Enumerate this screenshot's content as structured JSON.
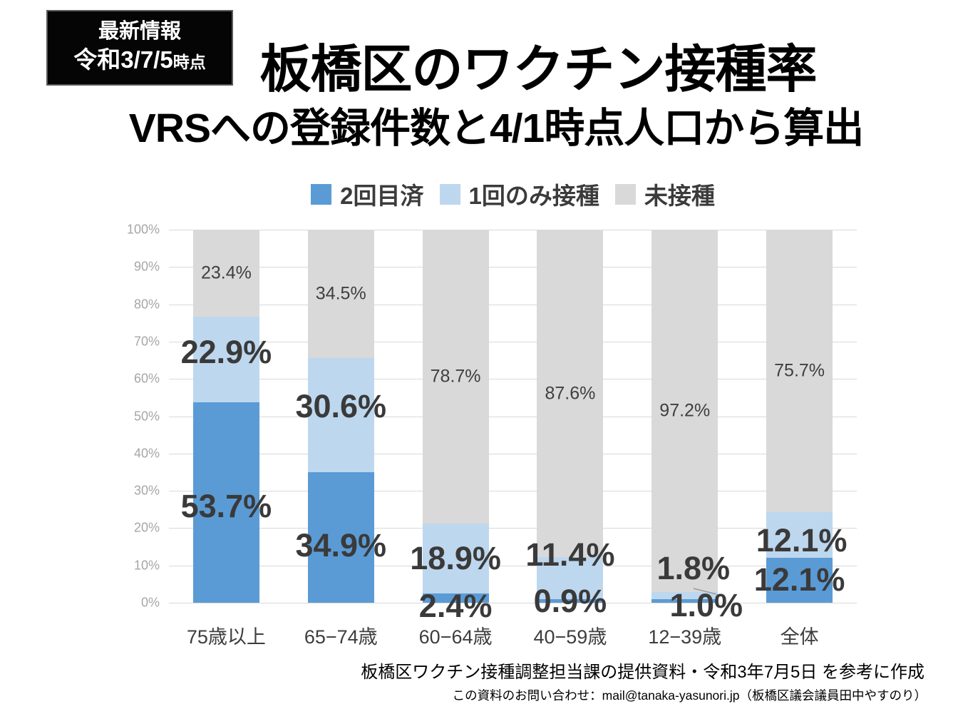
{
  "badge": {
    "line1": "最新情報",
    "line2": "令和3/7/5",
    "line2_suffix": "時点"
  },
  "title": "板橋区のワクチン接種率",
  "subtitle": "VRSへの登録件数と4/1時点人口から算出",
  "chart_data": {
    "type": "bar",
    "stacked": true,
    "title": "板橋区のワクチン接種率",
    "categories": [
      "75歳以上",
      "65−74歳",
      "60−64歳",
      "40−59歳",
      "12−39歳",
      "全体"
    ],
    "series": [
      {
        "name": "2回目済",
        "color": "#5B9BD5",
        "values": [
          53.7,
          34.9,
          2.4,
          0.9,
          1.0,
          12.1
        ]
      },
      {
        "name": "1回のみ接種",
        "color": "#BDD7EE",
        "values": [
          22.9,
          30.6,
          18.9,
          11.4,
          1.8,
          12.1
        ]
      },
      {
        "name": "未接種",
        "color": "#D9D9D9",
        "values": [
          23.4,
          34.5,
          78.7,
          87.6,
          97.2,
          75.7
        ]
      }
    ],
    "value_suffix": "%",
    "ylim": [
      0,
      100
    ],
    "yticks": [
      "100%",
      "90%",
      "80%",
      "70%",
      "60%",
      "50%",
      "40%",
      "30%",
      "20%",
      "10%",
      "0%"
    ],
    "grid": true,
    "grid_color": "#d9d9d9",
    "axis_label_color": "#a6a6a6",
    "legend_position": "top"
  },
  "footer": {
    "source": "板橋区ワクチン接種調整担当課の提供資料・令和3年7月5日 を参考に作成",
    "contact": "この資料のお問い合わせ：mail@tanaka-yasunori.jp（板橋区議会議員田中やすのり）"
  }
}
